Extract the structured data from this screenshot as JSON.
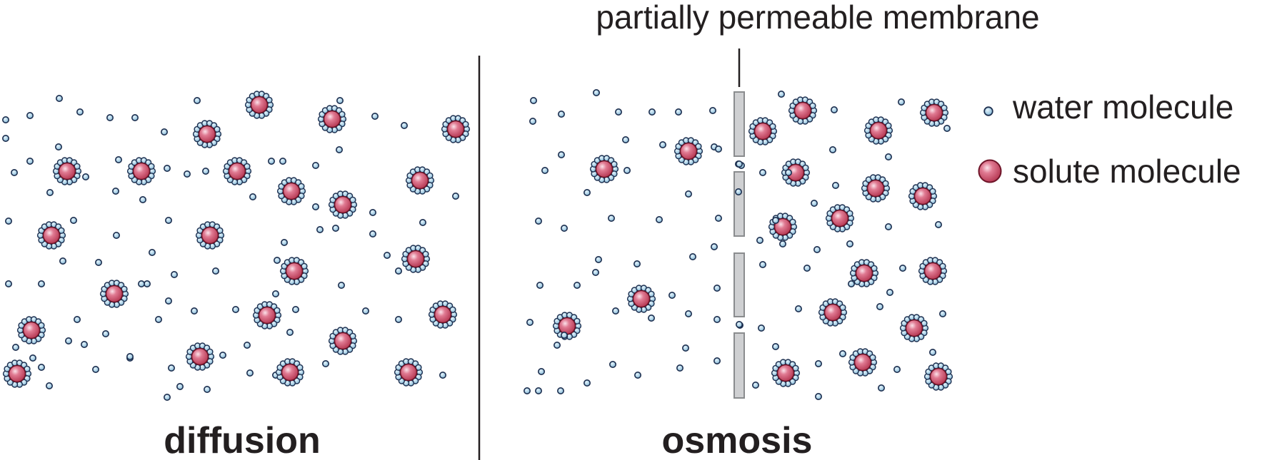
{
  "membrane_label": "partially permeable membrane",
  "panels": {
    "left_title": "diffusion",
    "right_title": "osmosis"
  },
  "legend": {
    "water_label": "water molecule",
    "solute_label": "solute molecule"
  },
  "colors": {
    "water_fill": "#9ccde6",
    "water_stroke": "#1d2f4f",
    "solute_core": "#d24f6e",
    "solute_core_edge": "#6e1428",
    "membrane_fill": "#cfd0d2",
    "membrane_stroke": "#8a8c8e",
    "ink": "#231f20"
  }
}
